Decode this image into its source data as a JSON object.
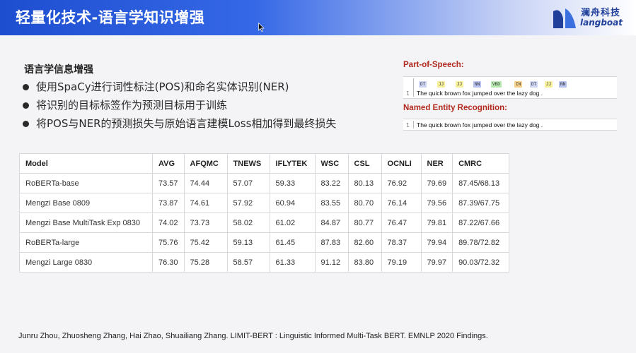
{
  "header": {
    "title": "轻量化技术-语言学知识增强",
    "logo_cn": "澜舟科技",
    "logo_en": "langboat",
    "background_color": "#2a5de0"
  },
  "section": {
    "title": "语言学信息增强",
    "bullets": [
      "使用SpaCy进行词性标注(POS)和命名实体识别(NER)",
      "将识别的目标标签作为预测目标用于训练",
      "将POS与NER的预测损失与原始语言建模Loss相加得到最终损失"
    ]
  },
  "nlp_panel": {
    "pos_label": "Part-of-Speech:",
    "ner_label": "Named Entity Recognition:",
    "line_number": "1",
    "sentence": "The quick brown fox jumped over the lazy dog .",
    "pos_tags": [
      {
        "tag": "DT",
        "color": "#cfd6f5"
      },
      {
        "tag": "JJ",
        "color": "#f6ef9c"
      },
      {
        "tag": "JJ",
        "color": "#f6ef9c"
      },
      {
        "tag": "NN",
        "color": "#b7c2ee"
      },
      {
        "tag": "VBD",
        "color": "#b8eab2"
      },
      {
        "tag": "IN",
        "color": "#f7d18a"
      },
      {
        "tag": "DT",
        "color": "#cfd6f5"
      },
      {
        "tag": "JJ",
        "color": "#f6ef9c"
      },
      {
        "tag": "NN",
        "color": "#b7c2ee"
      }
    ],
    "label_color": "#b22a1e"
  },
  "table": {
    "headers": [
      "Model",
      "AVG",
      "AFQMC",
      "TNEWS",
      "IFLYTEK",
      "WSC",
      "CSL",
      "OCNLI",
      "NER",
      "CMRC"
    ],
    "rows": [
      [
        "RoBERTa-base",
        "73.57",
        "74.44",
        "57.07",
        "59.33",
        "83.22",
        "80.13",
        "76.92",
        "79.69",
        "87.45/68.13"
      ],
      [
        "Mengzi Base 0809",
        "73.87",
        "74.61",
        "57.92",
        "60.94",
        "83.55",
        "80.70",
        "76.14",
        "79.56",
        "87.39/67.75"
      ],
      [
        "Mengzi Base MultiTask Exp 0830",
        "74.02",
        "73.73",
        "58.02",
        "61.02",
        "84.87",
        "80.77",
        "76.47",
        "79.81",
        "87.22/67.66"
      ],
      [
        "RoBERTa-large",
        "75.76",
        "75.42",
        "59.13",
        "61.45",
        "87.83",
        "82.60",
        "78.37",
        "79.94",
        "89.78/72.82"
      ],
      [
        "Mengzi Large 0830",
        "76.30",
        "75.28",
        "58.57",
        "61.33",
        "91.12",
        "83.80",
        "79.19",
        "79.97",
        "90.03/72.32"
      ]
    ]
  },
  "citation": "Junru Zhou, Zhuosheng Zhang, Hai Zhao, Shuailiang Zhang. LIMIT-BERT : Linguistic Informed Multi-Task BERT. EMNLP 2020 Findings."
}
